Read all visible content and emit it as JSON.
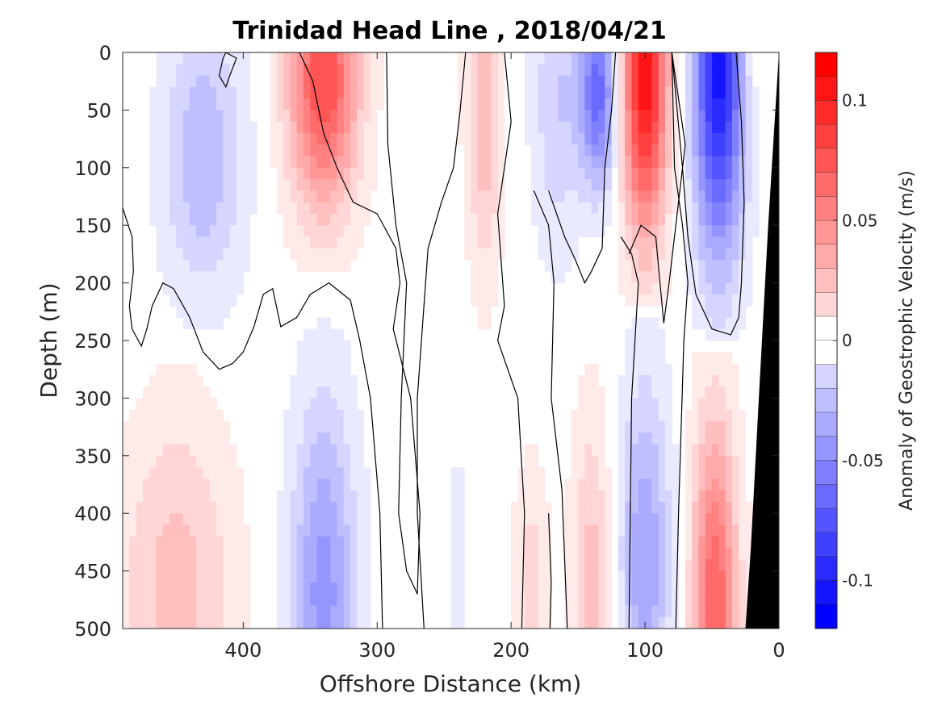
{
  "chart_data": {
    "type": "heatmap",
    "title": "Trinidad Head Line , 2018/04/21",
    "xlabel": "Offshore Distance (km)",
    "ylabel": "Depth (m)",
    "xlim": [
      490,
      0
    ],
    "ylim": [
      0,
      500
    ],
    "x_direction": "reversed",
    "y_direction": "reversed",
    "xticks": [
      400,
      300,
      200,
      100,
      0
    ],
    "yticks": [
      0,
      50,
      100,
      150,
      200,
      250,
      300,
      350,
      400,
      450,
      500
    ],
    "colorbar": {
      "label": "Anomaly of Geostrophic Velocity (m/s)",
      "range": [
        -0.12,
        0.12
      ],
      "step": 0.01,
      "ticks": [
        0.1,
        0.05,
        0,
        -0.05,
        -0.1
      ],
      "tick_labels": [
        "0.1",
        "0.05",
        "0",
        "-0.05",
        "-0.1"
      ],
      "positive_color": "#ff0000",
      "negative_color": "#0000ff",
      "zero_color": "#ffffff"
    },
    "bathymetry_color": "#000000",
    "bathymetry_outline": [
      [
        0,
        0
      ],
      [
        8,
        150
      ],
      [
        15,
        300
      ],
      [
        21,
        430
      ],
      [
        25,
        500
      ],
      [
        0,
        500
      ]
    ],
    "zero_contour_color": "#000000",
    "features": [
      {
        "x": 430,
        "depth_top": 0,
        "depth_bottom": 250,
        "peak_depth": 90,
        "value": -0.035,
        "x_halfwidth": 32
      },
      {
        "x": 450,
        "depth_top": 260,
        "depth_bottom": 500,
        "peak_depth": 460,
        "value": 0.03,
        "x_halfwidth": 45
      },
      {
        "x": 340,
        "depth_top": 0,
        "depth_bottom": 180,
        "peak_depth": 25,
        "value": 0.085,
        "x_halfwidth": 28
      },
      {
        "x": 340,
        "depth_top": 240,
        "depth_bottom": 500,
        "peak_depth": 470,
        "value": -0.05,
        "x_halfwidth": 26
      },
      {
        "x": 220,
        "depth_top": 0,
        "depth_bottom": 240,
        "peak_depth": 40,
        "value": 0.035,
        "x_halfwidth": 14
      },
      {
        "x": 185,
        "depth_top": 320,
        "depth_bottom": 500,
        "peak_depth": 460,
        "value": 0.02,
        "x_halfwidth": 14
      },
      {
        "x": 240,
        "depth_top": 300,
        "depth_bottom": 500,
        "peak_depth": 470,
        "value": -0.012,
        "x_halfwidth": 8
      },
      {
        "x": 165,
        "depth_top": 0,
        "depth_bottom": 220,
        "peak_depth": 40,
        "value": -0.025,
        "x_halfwidth": 20
      },
      {
        "x": 135,
        "depth_top": 0,
        "depth_bottom": 150,
        "peak_depth": 35,
        "value": -0.07,
        "x_halfwidth": 15
      },
      {
        "x": 140,
        "depth_top": 260,
        "depth_bottom": 500,
        "peak_depth": 460,
        "value": 0.03,
        "x_halfwidth": 16
      },
      {
        "x": 100,
        "depth_top": 0,
        "depth_bottom": 210,
        "peak_depth": 15,
        "value": 0.115,
        "x_halfwidth": 18
      },
      {
        "x": 100,
        "depth_top": 230,
        "depth_bottom": 500,
        "peak_depth": 440,
        "value": -0.045,
        "x_halfwidth": 20
      },
      {
        "x": 45,
        "depth_top": 0,
        "depth_bottom": 240,
        "peak_depth": 15,
        "value": -0.11,
        "x_halfwidth": 20
      },
      {
        "x": 48,
        "depth_top": 260,
        "depth_bottom": 500,
        "peak_depth": 480,
        "value": 0.075,
        "x_halfwidth": 18
      },
      {
        "x": 20,
        "depth_top": 0,
        "depth_bottom": 40,
        "peak_depth": 10,
        "value": 0.02,
        "x_halfwidth": 4
      }
    ],
    "zero_contours": [
      [
        [
          490,
          135
        ],
        [
          483,
          160
        ],
        [
          482,
          190
        ],
        [
          485,
          220
        ],
        [
          483,
          240
        ],
        [
          476,
          255
        ],
        [
          472,
          240
        ],
        [
          468,
          220
        ],
        [
          460,
          200
        ],
        [
          452,
          205
        ],
        [
          440,
          230
        ],
        [
          430,
          260
        ],
        [
          418,
          275
        ],
        [
          408,
          270
        ],
        [
          400,
          260
        ],
        [
          392,
          238
        ],
        [
          385,
          210
        ],
        [
          378,
          205
        ],
        [
          372,
          238
        ],
        [
          360,
          230
        ],
        [
          350,
          210
        ],
        [
          336,
          200
        ],
        [
          320,
          215
        ],
        [
          313,
          250
        ],
        [
          305,
          300
        ],
        [
          298,
          400
        ],
        [
          296,
          500
        ]
      ],
      [
        [
          358,
          0
        ],
        [
          348,
          25
        ],
        [
          340,
          70
        ],
        [
          330,
          100
        ],
        [
          318,
          130
        ],
        [
          300,
          140
        ],
        [
          286,
          170
        ],
        [
          283,
          200
        ],
        [
          288,
          240
        ],
        [
          275,
          300
        ],
        [
          268,
          400
        ],
        [
          270,
          470
        ],
        [
          278,
          450
        ],
        [
          284,
          400
        ],
        [
          282,
          300
        ],
        [
          278,
          200
        ],
        [
          286,
          150
        ],
        [
          292,
          80
        ],
        [
          293,
          0
        ]
      ],
      [
        [
          413,
          0
        ],
        [
          405,
          5
        ],
        [
          410,
          20
        ],
        [
          413,
          30
        ],
        [
          418,
          20
        ],
        [
          415,
          5
        ],
        [
          413,
          0
        ]
      ],
      [
        [
          234,
          0
        ],
        [
          238,
          50
        ],
        [
          243,
          100
        ],
        [
          252,
          130
        ],
        [
          262,
          170
        ],
        [
          270,
          300
        ],
        [
          270,
          400
        ],
        [
          265,
          500
        ]
      ],
      [
        [
          205,
          0
        ],
        [
          200,
          60
        ],
        [
          210,
          140
        ],
        [
          205,
          220
        ],
        [
          210,
          250
        ],
        [
          195,
          300
        ],
        [
          190,
          400
        ],
        [
          192,
          500
        ]
      ],
      [
        [
          172,
          400
        ],
        [
          170,
          460
        ],
        [
          171,
          500
        ]
      ],
      [
        [
          183,
          120
        ],
        [
          172,
          150
        ],
        [
          168,
          200
        ],
        [
          170,
          300
        ],
        [
          162,
          380
        ],
        [
          158,
          500
        ]
      ],
      [
        [
          172,
          120
        ],
        [
          160,
          160
        ],
        [
          152,
          180
        ],
        [
          145,
          200
        ],
        [
          140,
          190
        ],
        [
          132,
          170
        ],
        [
          130,
          100
        ],
        [
          125,
          50
        ],
        [
          122,
          0
        ]
      ],
      [
        [
          118,
          160
        ],
        [
          110,
          175
        ],
        [
          105,
          200
        ],
        [
          110,
          300
        ],
        [
          112,
          500
        ]
      ],
      [
        [
          80,
          0
        ],
        [
          75,
          40
        ],
        [
          70,
          80
        ],
        [
          75,
          130
        ],
        [
          82,
          200
        ],
        [
          86,
          235
        ],
        [
          92,
          160
        ],
        [
          103,
          150
        ],
        [
          112,
          175
        ]
      ],
      [
        [
          80,
          0
        ],
        [
          78,
          100
        ],
        [
          72,
          150
        ],
        [
          68,
          200
        ],
        [
          71,
          250
        ],
        [
          75,
          400
        ],
        [
          77,
          500
        ]
      ],
      [
        [
          32,
          0
        ],
        [
          28,
          60
        ],
        [
          26,
          130
        ],
        [
          28,
          200
        ],
        [
          30,
          230
        ],
        [
          36,
          245
        ],
        [
          50,
          240
        ],
        [
          62,
          210
        ],
        [
          68,
          160
        ],
        [
          72,
          100
        ],
        [
          76,
          50
        ],
        [
          80,
          0
        ]
      ]
    ]
  }
}
